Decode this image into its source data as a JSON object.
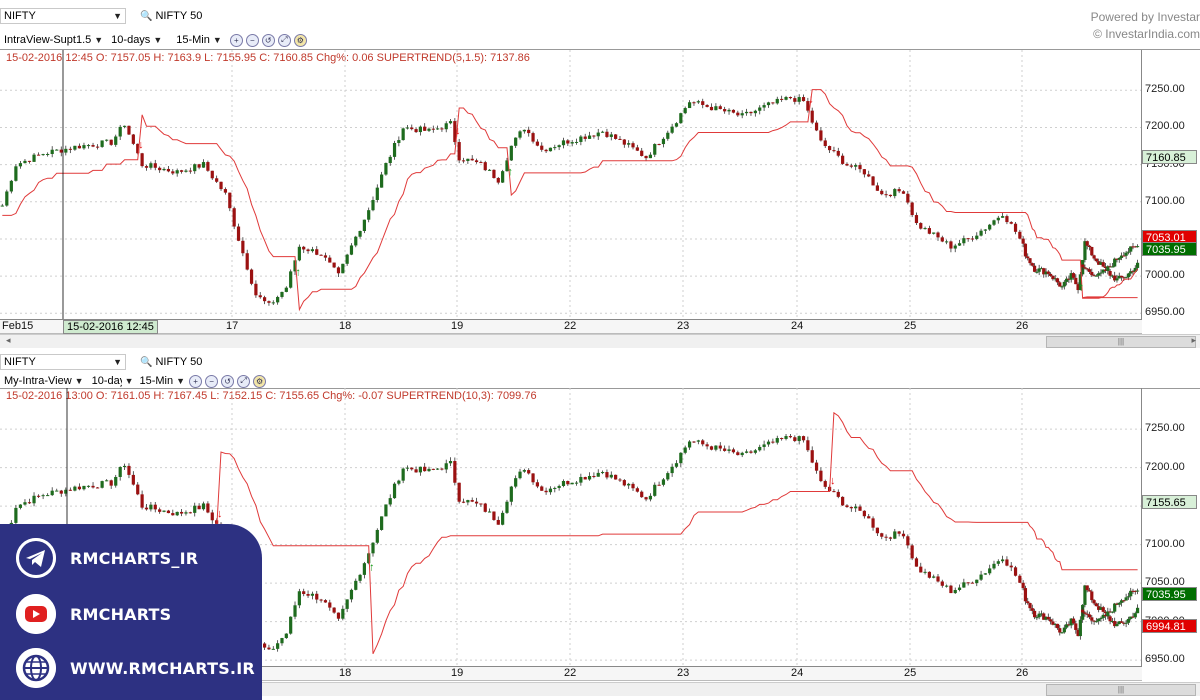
{
  "header": {
    "brand_line1": "Powered by Investar",
    "brand_line2": "© InvestarIndia.com"
  },
  "charts": [
    {
      "symbol": "NIFTY",
      "index_label": "NIFTY 50",
      "view": "IntraView-Supt1.5",
      "period": "10-days",
      "interval": "15-Min",
      "status": "15-02-2016 12:45  O: 7157.05  H: 7163.9  L: 7155.95  C: 7160.85  Chg%: 0.06  SUPERTREND(5,1.5):  7137.86",
      "crosshair_date": "15-02-2016 12:45",
      "first_date_label": "Feb15",
      "price_tags": [
        {
          "text": "7160.85",
          "value": 7160.85,
          "bg": "#d8f0d8",
          "fg": "#000"
        },
        {
          "text": "7053.01",
          "value": 7053.01,
          "bg": "#e00000",
          "fg": "#fff"
        },
        {
          "text": "7035.95",
          "value": 7035.95,
          "bg": "#006e00",
          "fg": "#fff"
        }
      ]
    },
    {
      "symbol": "NIFTY",
      "index_label": "NIFTY 50",
      "view": "My-Intra-View",
      "period": "10-days",
      "interval": "15-Min",
      "status": "15-02-2016 13:00  O: 7161.05  H: 7167.45  L: 7152.15  C: 7155.65  Chg%: -0.07  SUPERTREND(10,3):  7099.76",
      "crosshair_date": "",
      "first_date_label": "",
      "price_tags": [
        {
          "text": "7155.65",
          "value": 7155.65,
          "bg": "#d8f0d8",
          "fg": "#000"
        },
        {
          "text": "7035.95",
          "value": 7035.95,
          "bg": "#006e00",
          "fg": "#fff"
        },
        {
          "text": "6994.81",
          "value": 6994.81,
          "bg": "#e00000",
          "fg": "#fff"
        }
      ]
    }
  ],
  "promo": {
    "telegram": "RMCHARTS_IR",
    "youtube": "RMCHARTS",
    "website": "WWW.RMCHARTS.IR"
  },
  "colors": {
    "up": "#1e6b1e",
    "down": "#9b1111",
    "supertrend": "#e03a3a",
    "buy_arrow": "#1a9a1a",
    "sell_arrow": "#e01010",
    "promo_bg": "#2d3182"
  },
  "chart_data": {
    "type": "candlestick",
    "x_tick_labels": [
      "17",
      "18",
      "19",
      "22",
      "23",
      "24",
      "25",
      "26"
    ],
    "y_ticks": [
      6950,
      7000,
      7050,
      7100,
      7150,
      7200,
      7250
    ],
    "ylim": [
      6945,
      7280
    ],
    "grid": true,
    "anchors": [
      [
        "15-02 09:15",
        7095
      ],
      [
        "15-02 10:00",
        7150
      ],
      [
        "15-02 11:30",
        7165
      ],
      [
        "15-02 13:30",
        7175
      ],
      [
        "15-02 15:15",
        7180
      ],
      [
        "16-02 09:30",
        7205
      ],
      [
        "16-02 10:30",
        7150
      ],
      [
        "16-02 12:30",
        7140
      ],
      [
        "16-02 14:00",
        7150
      ],
      [
        "16-02 15:15",
        7110
      ],
      [
        "17-02 09:30",
        7050
      ],
      [
        "17-02 10:30",
        6975
      ],
      [
        "17-02 11:15",
        6960
      ],
      [
        "17-02 12:15",
        6985
      ],
      [
        "17-02 13:00",
        7040
      ],
      [
        "17-02 14:15",
        7030
      ],
      [
        "17-02 15:15",
        7000
      ],
      [
        "18-02 09:30",
        7040
      ],
      [
        "18-02 10:30",
        7090
      ],
      [
        "18-02 11:30",
        7150
      ],
      [
        "18-02 12:30",
        7200
      ],
      [
        "18-02 14:00",
        7195
      ],
      [
        "18-02 15:15",
        7205
      ],
      [
        "19-02 09:15",
        7160
      ],
      [
        "19-02 10:30",
        7150
      ],
      [
        "19-02 11:30",
        7130
      ],
      [
        "19-02 12:15",
        7175
      ],
      [
        "19-02 13:00",
        7200
      ],
      [
        "19-02 14:00",
        7170
      ],
      [
        "19-02 15:15",
        7180
      ],
      [
        "22-02 09:30",
        7185
      ],
      [
        "22-02 11:00",
        7195
      ],
      [
        "22-02 12:30",
        7175
      ],
      [
        "22-02 13:30",
        7160
      ],
      [
        "22-02 15:15",
        7210
      ],
      [
        "23-02 09:30",
        7235
      ],
      [
        "23-02 11:00",
        7225
      ],
      [
        "23-02 12:30",
        7215
      ],
      [
        "23-02 14:00",
        7230
      ],
      [
        "23-02 15:15",
        7240
      ],
      [
        "24-02 09:30",
        7235
      ],
      [
        "24-02 10:30",
        7180
      ],
      [
        "24-02 12:00",
        7150
      ],
      [
        "24-02 13:00",
        7140
      ],
      [
        "24-02 14:00",
        7110
      ],
      [
        "24-02 15:15",
        7115
      ],
      [
        "25-02 09:30",
        7070
      ],
      [
        "25-02 10:30",
        7055
      ],
      [
        "25-02 11:30",
        7040
      ],
      [
        "25-02 12:30",
        7050
      ],
      [
        "25-02 13:30",
        7065
      ],
      [
        "25-02 14:30",
        7085
      ],
      [
        "25-02 15:15",
        7060
      ],
      [
        "26-02 09:30",
        7030
      ],
      [
        "26-02 10:30",
        7010
      ],
      [
        "26-02 12:00",
        7005
      ],
      [
        "26-02 13:30",
        6985
      ],
      [
        "26-02 14:30",
        7000
      ],
      [
        "26-02 15:15",
        6985
      ],
      [
        "29-02 09:30",
        7045
      ],
      [
        "29-02 10:30",
        7025
      ],
      [
        "29-02 12:00",
        7005
      ],
      [
        "29-02 13:00",
        6995
      ],
      [
        "29-02 14:00",
        7000
      ],
      [
        "29-02 15:15",
        7015
      ],
      [
        "01-03 09:30",
        7010
      ],
      [
        "01-03 11:00",
        7000
      ],
      [
        "01-03 12:00",
        7010
      ],
      [
        "01-03 13:30",
        7030
      ],
      [
        "01-03 15:15",
        7040
      ],
      [
        "01-03 15:15",
        7036
      ]
    ],
    "series": [
      {
        "name": "SUPERTREND(5,1.5)",
        "chart": 1
      },
      {
        "name": "SUPERTREND(10,3)",
        "chart": 2
      }
    ]
  }
}
